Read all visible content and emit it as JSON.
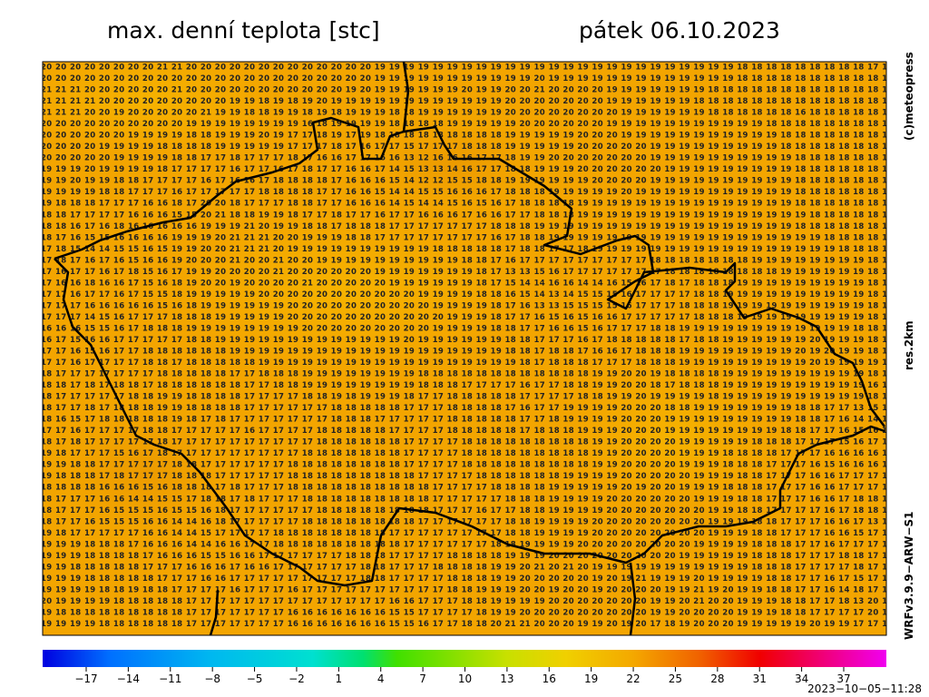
{
  "header": {
    "title": "max. denní teplota [stc]",
    "date": "pátek 06.10.2023"
  },
  "side": {
    "copyright": "(c)meteopress",
    "resolution": "res.2km",
    "model": "WRFv3.9.9−ARW−S1"
  },
  "footer": {
    "timestamp": "2023−10−05−11:28"
  },
  "colorbar": {
    "ticks": [
      "−17",
      "−14",
      "−11",
      "−8",
      "−5",
      "−2",
      "1",
      "4",
      "7",
      "10",
      "13",
      "16",
      "19",
      "22",
      "25",
      "28",
      "31",
      "34",
      "37"
    ]
  },
  "map": {
    "rows": [
      "20 20 20 20 20 20 20 20 21 21 20 20 20 20 20 20 20 20 20 20 20 20 20 19 19 19 19 19 19 19 19 19 19 19 19 19 19 19 19 19 19 19 19 19 19 19 19 19 18 18 18 18 18 18 18 18 18 17 1",
      "20 20 20 20 20 20 20 20 20 20 20 20 20 20 20 20 20 20 20 20 20 20 20 19 19 19 19 19 19 19 19 19 19 19 20 19 19 19 19 19 19 19 19 19 19 19 19 19 18 18 18 18 18 18 18 18 18 18 1",
      "21 21 21 20 20 20 20 20 20 21 20 20 20 20 20 20 20 20 20 20 20 19 20 19 19 19 19 19 19 20 19 19 20 20 21 20 20 20 20 19 19 19 19 19 19 19 18 18 18 18 18 18 18 18 18 18 18 18 1",
      "21 21 21 21 20 20 20 20 20 20 20 20 20 19 19 18 19 18 19 20 19 19 19 19 19 19 19 19 19 19 19 19 20 20 20 20 20 20 20 19 19 19 19 19 19 18 18 18 18 18 18 18 18 18 18 18 18 18 1",
      "21 21 21 20 20 19 20 20 20 20 20 21 19 19 18 18 19 19 18 19 18 19 19 19 18 18 19 19 19 19 19 19 20 20 20 20 20 20 20 20 19 19 19 19 19 19 18 18 18 18 18 18 16 18 18 18 18 18 1",
      "20 20 20 20 20 20 20 20 20 20 19 19 19 19 19 19 19 19 16 18 19 19 19 19 18 18 18 18 19 19 19 19 19 20 20 20 20 20 20 19 19 19 19 19 19 19 19 19 19 19 18 18 18 18 18 18 18 18 1",
      "20 20 20 20 20 20 19 19 19 19 18 18 19 19 19 20 19 17 17 18 19 17 19 18 18 18 18 18 18 18 18 18 19 19 19 19 19 20 20 20 19 19 19 19 19 19 19 19 19 19 19 18 18 18 18 18 18 18 1",
      "20 20 20 20 19 19 19 19 18 18 18 18 19 19 19 19 19 17 17 17 18 17 16 17 17 15 17 17 17 18 18 18 19 19 19 19 19 20 20 20 20 20 19 19 19 19 19 19 19 19 19 18 18 18 18 18 18 18 1",
      "20 20 20 20 20 19 19 19 19 18 18 17 17 18 17 17 17 18 17 16 16 17 17 16 16 13 12 16 16 16 17 17 18 19 19 20 20 20 20 20 20 20 19 19 19 19 19 19 19 19 19 19 18 18 18 18 18 18 1",
      "19 19 19 20 19 19 19 19 18 17 17 17 17 16 17 17 16 17 18 17 17 16 16 17 14 15 13 13 14 16 17 17 18 18 19 19 19 20 20 20 20 20 20 19 19 19 19 19 19 19 19 19 18 18 18 18 18 18 1",
      "19 19 20 19 19 18 18 17 17 17 17 16 17 16 16 17 18 18 18 18 17 16 16 16 15 14 12 12 15 15 18 18 19 19 19 19 19 19 20 20 20 20 19 19 19 19 19 19 19 19 19 19 18 18 18 18 18 18 1",
      "19 19 19 19 18 18 17 17 17 16 17 17 17 17 17 18 18 18 18 17 17 16 16 15 14 14 15 15 16 16 16 17 18 18 18 19 19 19 19 19 20 19 19 19 19 19 19 19 19 19 19 19 18 18 18 18 18 18 1",
      "19 18 18 18 17 17 17 16 16 18 17 20 20 18 17 17 17 18 18 17 17 16 16 16 14 15 14 14 15 16 15 16 17 18 18 18 18 19 19 19 19 19 19 19 19 19 19 19 19 19 19 19 18 18 18 18 18 18 1",
      "18 18 17 17 17 17 16 16 16 15 15 20 21 18 18 19 19 18 17 17 18 17 17 16 17 17 16 16 16 17 16 16 17 17 18 18 18 19 19 19 19 19 19 19 19 19 19 19 19 19 19 19 19 18 18 18 18 18 1",
      "18 18 16 17 16 18 16 16 16 16 16 19 19 19 21 20 19 19 18 18 17 18 18 18 17 17 17 17 17 17 17 18 18 18 19 19 19 19 19 19 19 19 19 19 19 19 19 19 19 19 19 19 18 18 18 18 18 18 1",
      "18 17 16 15 15 16 16 16 16 19 19 19 20 21 21 21 20 20 19 19 19 18 18 17 17 17 17 17 17 17 17 16 17 18 18 19 19 19 19 19 19 19 19 19 19 19 19 19 19 19 19 19 19 19 18 18 18 18 1",
      "17 18 15 14 14 15 15 16 15 19 19 20 20 21 21 21 20 19 19 19 19 19 19 19 19 19 19 18 18 18 18 18 17 18 18 17 17 18 19 19 19 19 19 19 19 19 19 19 19 19 19 19 19 19 19 18 18 18 1",
      "17 18 17 16 17 16 15 16 16 19 20 20 20 21 20 20 21 20 20 19 19 19 19 19 19 19 19 19 19 18 18 17 16 17 17 17 17 17 17 17 17 17 18 18 18 18 18 18 18 19 19 19 19 19 19 19 19 18 1",
      "17 16 17 17 16 17 18 15 16 17 19 19 20 20 20 20 21 20 20 20 20 20 20 19 19 19 19 19 19 19 18 17 13 13 15 16 17 17 17 17 17 17 17 18 18 18 18 18 18 18 18 19 19 19 19 19 19 18 1",
      "17 16 16 18 16 16 17 15 16 18 19 20 20 19 20 20 20 20 21 20 20 20 20 20 19 19 19 19 19 19 18 17 15 14 14 16 16 14 14 16 15 16 17 18 17 18 18 18 19 19 19 19 19 19 19 19 19 18 1",
      "17 17 16 17 17 16 17 15 15 18 19 19 19 19 19 20 20 20 20 20 20 20 20 20 20 20 19 19 19 19 18 18 16 15 14 13 14 15 15 15 16 17 17 17 17 18 18 19 19 19 19 19 19 19 19 19 19 18 1",
      "17 17 17 16 16 16 16 16 15 16 18 19 19 19 19 19 19 20 20 20 20 20 20 20 20 20 20 19 19 19 19 18 17 16 13 13 15 15 15 15 16 17 17 17 18 18 18 19 19 19 19 19 19 19 19 19 19 18 1",
      "17 17 17 14 15 16 17 17 17 18 18 18 19 19 19 19 19 20 20 20 20 20 20 20 20 20 20 20 19 19 19 18 17 17 16 15 16 15 16 16 17 17 17 17 17 18 18 18 19 19 19 19 19 19 19 19 19 18 1",
      "16 16 16 15 15 16 17 18 18 18 19 19 19 19 19 19 19 19 20 20 20 20 20 20 20 20 20 19 19 19 19 18 18 17 17 16 16 15 16 17 17 17 18 18 19 19 19 19 19 19 19 19 19 19 19 19 18 18 1",
      "16 17 15 16 16 17 17 17 17 17 18 18 19 19 19 19 19 19 19 19 19 19 19 19 19 20 19 19 19 19 19 19 18 18 17 17 17 16 17 18 18 18 18 18 17 18 18 19 19 19 19 19 19 20 19 19 19 18 1",
      "17 17 16 15 16 17 17 18 18 18 18 18 18 19 19 19 19 19 19 19 19 19 19 19 19 19 19 19 19 19 19 19 18 18 17 18 18 17 16 16 17 18 18 18 19 19 19 19 19 19 19 19 20 19 20 19 19 18 1",
      "17 17 16 17 17 17 17 18 18 17 18 18 18 18 18 19 19 19 19 19 19 19 19 19 19 19 19 19 19 19 19 19 19 18 17 18 18 18 17 17 17 18 18 18 19 19 19 19 19 19 19 19 19 20 19 19 19 19 1",
      "18 17 17 17 17 17 17 17 18 18 18 18 18 17 17 18 18 18 19 19 19 19 19 19 19 19 18 18 18 18 18 18 18 18 18 18 18 18 19 19 20 20 19 18 18 18 18 19 19 19 19 19 19 19 19 19 19 18 1",
      "18 18 17 18 17 18 18 17 18 18 18 18 18 18 17 17 18 18 19 19 19 19 19 19 19 19 18 18 18 17 17 17 17 16 17 17 18 18 19 19 20 20 18 17 18 18 18 19 19 19 19 19 19 19 19 19 19 16 1",
      "18 17 17 17 17 17 18 18 19 19 18 18 18 18 17 17 17 17 18 18 19 18 19 19 19 18 17 17 18 18 18 18 18 17 17 17 17 18 18 19 19 20 19 19 19 19 18 19 19 19 19 19 19 19 19 19 19 18 1",
      "18 17 17 18 17 18 18 18 19 19 18 18 18 18 17 17 17 17 17 17 18 18 18 18 18 17 17 17 18 18 18 18 17 16 17 17 19 19 19 19 20 20 20 18 18 19 19 19 19 19 19 19 18 18 17 17 13 15 1",
      "18 16 15 17 18 18 18 18 18 19 18 17 18 17 17 17 17 17 17 17 18 18 18 17 17 17 17 17 18 18 18 18 18 17 17 18 19 19 19 19 20 20 20 19 19 19 19 19 19 19 19 19 18 18 17 16 14 14 1",
      "17 17 16 17 17 17 17 18 18 17 17 17 17 17 16 17 17 17 17 18 18 18 18 18 17 17 17 17 18 18 18 18 18 17 18 18 18 19 19 19 20 20 20 19 19 19 19 19 19 19 19 18 18 17 17 16 15 16 1",
      "18 17 18 17 17 17 17 17 18 17 17 17 17 17 17 17 17 17 17 18 18 18 18 18 18 17 17 17 17 18 18 18 18 18 18 18 18 18 19 19 20 20 20 20 19 19 19 19 19 18 18 18 17 17 17 15 16 17 1",
      "19 18 17 17 17 15 16 17 18 17 17 17 17 17 17 17 17 17 18 18 18 18 18 18 18 17 17 17 17 18 18 18 18 18 18 18 18 18 19 19 20 20 20 20 19 19 19 18 18 18 18 17 17 17 16 16 16 16 1",
      "19 19 18 18 17 17 17 17 17 18 18 17 17 17 17 17 17 18 18 18 18 18 18 18 18 17 17 17 17 18 18 18 18 18 18 18 18 18 19 19 20 20 20 20 19 19 19 18 18 18 17 17 17 16 15 16 16 16 1",
      "19 18 18 18 17 18 17 17 17 18 18 18 17 17 17 17 17 18 18 18 18 18 18 18 18 18 17 17 17 17 18 18 18 18 18 18 19 19 19 19 20 20 20 20 20 19 19 19 18 18 17 17 17 16 16 17 17 17 1",
      "18 18 18 18 16 16 16 15 16 18 18 18 17 18 17 17 17 18 18 18 18 18 18 18 18 18 18 17 17 17 17 18 18 18 18 19 19 19 19 19 20 19 20 20 19 19 19 18 18 18 17 17 17 16 16 17 17 17 1",
      "18 17 17 17 16 16 14 14 15 15 17 18 18 17 18 17 17 17 18 18 18 18 18 18 18 18 18 17 17 17 17 17 18 18 18 19 19 19 19 20 20 20 20 20 20 19 19 19 18 18 17 17 17 16 16 17 18 18 1",
      "18 17 17 17 16 15 15 15 16 15 15 16 18 17 17 17 17 17 17 18 18 18 18 18 18 18 18 17 17 17 16 17 17 18 18 19 19 19 19 20 20 20 20 20 20 20 19 19 18 18 17 17 17 17 16 17 18 18 1",
      "18 17 17 16 15 15 15 16 16 14 14 16 18 17 17 17 17 17 18 18 18 18 18 18 18 18 17 17 17 17 17 17 18 18 19 19 19 19 20 20 20 20 20 20 20 20 19 19 19 18 18 17 17 17 16 16 17 13 1",
      "19 18 17 17 17 17 17 16 16 14 14 15 17 17 17 17 18 18 18 18 18 18 18 18 17 17 17 17 17 17 17 17 18 18 19 19 19 19 20 20 20 20 20 20 20 20 19 19 19 18 18 17 17 17 16 16 15 17 1",
      "19 19 19 18 18 18 17 16 16 16 14 14 16 16 17 17 18 18 18 18 18 18 18 18 18 17 17 17 17 17 17 18 18 19 19 19 19 20 20 20 20 20 20 20 20 19 19 19 19 18 18 18 17 17 16 17 17 17 1",
      "19 19 19 18 18 18 18 17 16 16 16 15 15 16 16 17 17 17 17 17 17 18 18 18 17 17 17 17 18 18 18 18 19 19 19 20 20 20 20 20 20 20 20 20 19 19 19 19 19 18 18 18 17 17 17 18 18 17 1",
      "19 19 18 18 18 18 18 17 17 17 16 16 16 17 16 16 17 17 17 17 17 17 18 18 17 17 17 18 18 18 18 19 19 20 21 20 21 20 19 19 19 19 19 19 19 19 19 19 19 18 18 18 17 17 17 17 18 17 1",
      "19 19 19 18 18 18 18 18 17 17 17 16 16 17 17 17 17 17 17 17 17 17 18 18 17 17 17 17 18 18 18 19 19 20 20 20 20 20 19 20 19 21 19 19 19 20 19 19 19 19 18 18 17 17 16 17 15 17 1",
      "19 19 19 19 18 18 19 18 18 17 17 17 17 16 17 17 17 16 17 17 17 17 17 17 17 17 17 17 18 18 19 19 19 20 20 19 20 20 19 20 20 20 20 19 19 21 19 20 19 19 18 18 17 17 16 14 18 17 1",
      "20 19 19 19 19 18 18 18 18 18 17 17 17 17 17 17 17 17 17 17 17 17 17 17 16 16 17 17 17 18 18 19 19 19 19 20 20 20 20 20 20 20 19 19 20 21 20 20 19 19 19 18 18 17 17 18 13 20 1",
      "19 18 18 18 18 18 18 18 18 18 17 17 17 17 17 17 17 16 16 16 16 16 16 16 15 15 17 17 17 17 18 19 19 20 20 20 20 20 20 20 20 20 19 19 20 20 20 20 19 19 19 18 18 17 17 17 17 20 1",
      "19 19 19 19 18 18 18 18 18 18 17 17 17 17 17 17 17 16 16 16 16 16 16 16 15 15 16 17 17 18 18 20 21 21 20 20 20 19 19 20 19 20 17 18 19 20 20 20 19 19 19 19 19 20 19 19 17 17 1"
    ]
  }
}
